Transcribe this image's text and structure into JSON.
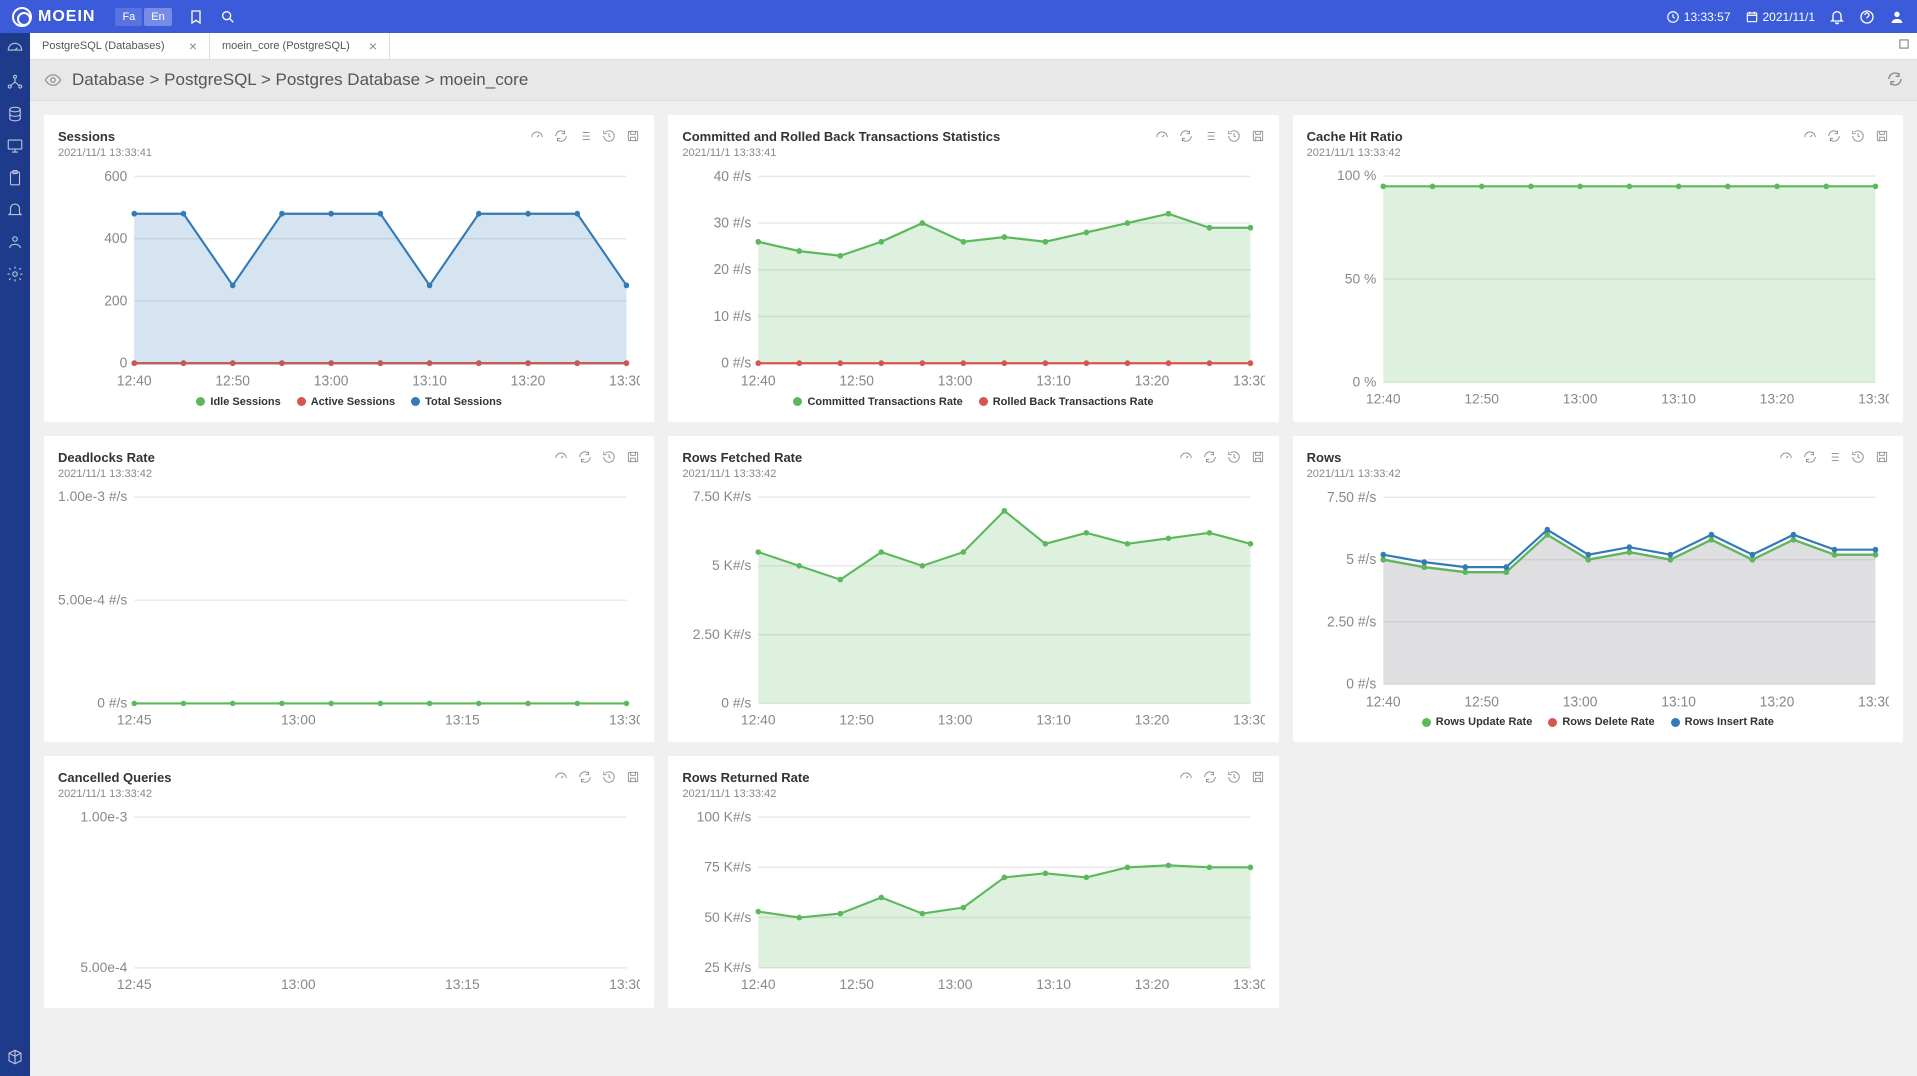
{
  "header": {
    "brand": "MOEIN",
    "lang_fa": "Fa",
    "lang_en": "En",
    "time": "13:33:57",
    "date": "2021/11/1"
  },
  "tabs": [
    {
      "label": "PostgreSQL (Databases)",
      "active": false
    },
    {
      "label": "moein_core (PostgreSQL)",
      "active": true
    }
  ],
  "breadcrumb": "Database > PostgreSQL > Postgres Database > moein_core",
  "colors": {
    "green": "#5cb85c",
    "red": "#d9534f",
    "blue": "#337ab7",
    "grid": "#e8e8e8",
    "axis": "#999",
    "area_green": "rgba(92,184,92,0.2)",
    "area_blue": "rgba(51,122,183,0.2)",
    "area_gray": "rgba(150,150,160,0.3)"
  },
  "xticks_std": [
    "12:40",
    "12:50",
    "13:00",
    "13:10",
    "13:20",
    "13:30"
  ],
  "xticks_dead": [
    "12:45",
    "13:00",
    "13:15",
    "13:30"
  ],
  "cards": {
    "sessions": {
      "title": "Sessions",
      "timestamp": "2021/11/1   13:33:41",
      "yticks": [
        "0",
        "200",
        "400",
        "600"
      ],
      "ylim": [
        0,
        600
      ],
      "legend": [
        {
          "label": "Idle Sessions",
          "color": "#5cb85c"
        },
        {
          "label": "Active Sessions",
          "color": "#d9534f"
        },
        {
          "label": "Total Sessions",
          "color": "#337ab7"
        }
      ],
      "series": [
        {
          "color": "#5cb85c",
          "fill": false,
          "values": [
            0,
            0,
            0,
            0,
            0,
            0,
            0,
            0,
            0,
            0,
            0
          ]
        },
        {
          "color": "#d9534f",
          "fill": false,
          "values": [
            0,
            0,
            0,
            0,
            0,
            0,
            0,
            0,
            0,
            0,
            0
          ]
        },
        {
          "color": "#337ab7",
          "fill": "rgba(51,122,183,0.2)",
          "values": [
            480,
            480,
            250,
            480,
            480,
            480,
            250,
            480,
            480,
            480,
            250
          ]
        }
      ]
    },
    "transactions": {
      "title": "Committed and Rolled Back Transactions Statistics",
      "timestamp": "2021/11/1   13:33:41",
      "yticks": [
        "0 #/s",
        "10 #/s",
        "20 #/s",
        "30 #/s",
        "40 #/s"
      ],
      "ylim": [
        0,
        40
      ],
      "legend": [
        {
          "label": "Committed Transactions Rate",
          "color": "#5cb85c"
        },
        {
          "label": "Rolled Back Transactions Rate",
          "color": "#d9534f"
        }
      ],
      "series": [
        {
          "color": "#5cb85c",
          "fill": "rgba(92,184,92,0.2)",
          "values": [
            26,
            24,
            23,
            26,
            30,
            26,
            27,
            26,
            28,
            30,
            32,
            29,
            29
          ]
        },
        {
          "color": "#d9534f",
          "fill": false,
          "values": [
            0,
            0,
            0,
            0,
            0,
            0,
            0,
            0,
            0,
            0,
            0,
            0,
            0
          ]
        }
      ]
    },
    "cache": {
      "title": "Cache Hit Ratio",
      "timestamp": "2021/11/1   13:33:42",
      "yticks": [
        "0 %",
        "50 %",
        "100 %"
      ],
      "ylim": [
        0,
        100
      ],
      "legend": [],
      "series": [
        {
          "color": "#5cb85c",
          "fill": "rgba(92,184,92,0.2)",
          "values": [
            95,
            95,
            95,
            95,
            95,
            95,
            95,
            95,
            95,
            95,
            95
          ]
        }
      ]
    },
    "deadlocks": {
      "title": "Deadlocks Rate",
      "timestamp": "2021/11/1   13:33:42",
      "yticks": [
        "0 #/s",
        "5.00e-4 #/s",
        "1.00e-3 #/s"
      ],
      "ylim": [
        0,
        0.001
      ],
      "legend": [],
      "series": [
        {
          "color": "#5cb85c",
          "fill": false,
          "values": [
            0,
            0,
            0,
            0,
            0,
            0,
            0,
            0,
            0,
            0,
            0
          ]
        }
      ]
    },
    "fetched": {
      "title": "Rows Fetched Rate",
      "timestamp": "2021/11/1   13:33:42",
      "yticks": [
        "0 #/s",
        "2.50 K#/s",
        "5 K#/s",
        "7.50 K#/s"
      ],
      "ylim": [
        0,
        7.5
      ],
      "legend": [],
      "series": [
        {
          "color": "#5cb85c",
          "fill": "rgba(92,184,92,0.2)",
          "values": [
            5.5,
            5.0,
            4.5,
            5.5,
            5.0,
            5.5,
            7.0,
            5.8,
            6.2,
            5.8,
            6.0,
            6.2,
            5.8
          ]
        }
      ]
    },
    "rows": {
      "title": "Rows",
      "timestamp": "2021/11/1   13:33:42",
      "yticks": [
        "0 #/s",
        "2.50 #/s",
        "5 #/s",
        "7.50 #/s"
      ],
      "ylim": [
        0,
        7.5
      ],
      "legend": [
        {
          "label": "Rows Update Rate",
          "color": "#5cb85c"
        },
        {
          "label": "Rows Delete Rate",
          "color": "#d9534f"
        },
        {
          "label": "Rows Insert Rate",
          "color": "#337ab7"
        }
      ],
      "series": [
        {
          "color": "#888",
          "fill": "rgba(150,150,160,0.3)",
          "values": [
            5.0,
            4.7,
            4.5,
            4.5,
            6.0,
            5.0,
            5.3,
            5.0,
            5.8,
            5.0,
            5.8,
            5.2,
            5.2
          ]
        },
        {
          "color": "#5cb85c",
          "fill": false,
          "values": [
            5.0,
            4.7,
            4.5,
            4.5,
            6.0,
            5.0,
            5.3,
            5.0,
            5.8,
            5.0,
            5.8,
            5.2,
            5.2
          ]
        },
        {
          "color": "#337ab7",
          "fill": false,
          "values": [
            5.2,
            4.9,
            4.7,
            4.7,
            6.2,
            5.2,
            5.5,
            5.2,
            6.0,
            5.2,
            6.0,
            5.4,
            5.4
          ]
        }
      ]
    },
    "cancelled": {
      "title": "Cancelled Queries",
      "timestamp": "2021/11/1   13:33:42",
      "yticks": [
        "5.00e-4",
        "1.00e-3"
      ],
      "ylim": [
        0,
        0.001
      ],
      "legend": [],
      "series": []
    },
    "returned": {
      "title": "Rows Returned Rate",
      "timestamp": "2021/11/1   13:33:42",
      "yticks": [
        "25 K#/s",
        "50 K#/s",
        "75 K#/s",
        "100 K#/s"
      ],
      "ylim": [
        25,
        100
      ],
      "legend": [],
      "series": [
        {
          "color": "#5cb85c",
          "fill": "rgba(92,184,92,0.2)",
          "values": [
            53,
            50,
            52,
            60,
            52,
            55,
            70,
            72,
            70,
            75,
            76,
            75,
            75
          ]
        }
      ]
    }
  }
}
